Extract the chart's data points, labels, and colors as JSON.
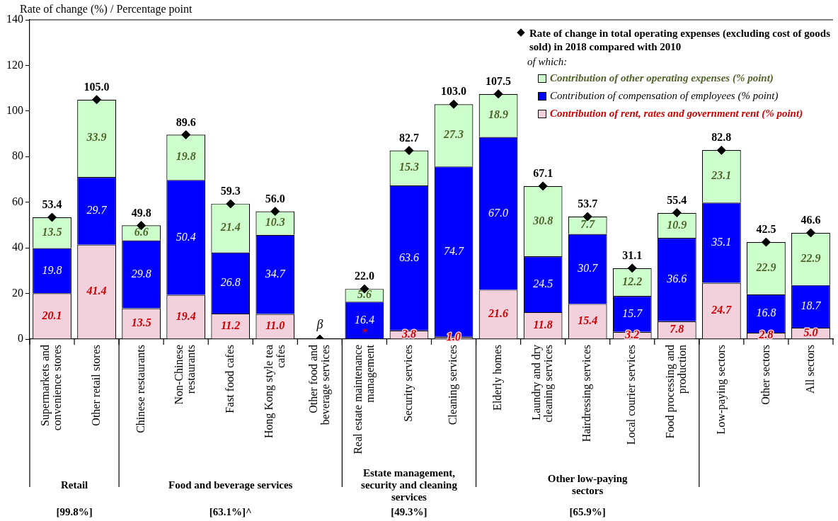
{
  "chart_data": {
    "type": "bar",
    "stacked": true,
    "ylabel": "Rate of change (%) / Percentage point",
    "legend_title": "of which:",
    "legend": "top right",
    "marker": "diamond",
    "ylim": [
      0,
      140
    ],
    "yticks": [
      0,
      20,
      40,
      60,
      80,
      100,
      120,
      140
    ],
    "categories": [
      "Supermarkets and convenience stores",
      "Other retail stores",
      "Chinese restaurants",
      "Non-Chinese restaurants",
      "Fast food cafes",
      "Hong Kong style tea cafes",
      "Other food and beverage services",
      "Real estate maintenance management",
      "Security services",
      "Cleaning services",
      "Elderly homes",
      "Laundry and dry cleaning services",
      "Hairdressing services",
      "Local courier services",
      "Food processing and production",
      "Low-paying sectors",
      "Other sectors",
      "All sectors"
    ],
    "series": [
      {
        "name": "Contribution of rent, rates and government rent (% point)",
        "color": "#f2d0dc",
        "values": [
          20.1,
          41.4,
          13.5,
          19.4,
          11.2,
          11.0,
          null,
          null,
          3.8,
          1.0,
          21.6,
          11.8,
          15.4,
          3.2,
          7.8,
          24.7,
          2.8,
          5.0
        ],
        "value_labels": [
          "20.1",
          "41.4",
          "13.5",
          "19.4",
          "11.2",
          "11.0",
          null,
          null,
          "3.8",
          "1.0",
          "21.6",
          "11.8",
          "15.4",
          "3.2",
          "7.8",
          "24.7",
          "2.8",
          "5.0"
        ]
      },
      {
        "name": "Contribution of compensation of employees (% point)",
        "color": "#0000ff",
        "values": [
          19.8,
          29.7,
          29.8,
          50.4,
          26.8,
          34.7,
          null,
          16.4,
          63.6,
          74.7,
          67.0,
          24.5,
          30.7,
          15.7,
          36.6,
          35.1,
          16.8,
          18.7
        ],
        "value_labels": [
          "19.8",
          "29.7",
          "29.8",
          "50.4",
          "26.8",
          "34.7",
          null,
          "16.4",
          "63.6",
          "74.7",
          "67.0",
          "24.5",
          "30.7",
          "15.7",
          "36.6",
          "35.1",
          "16.8",
          "18.7"
        ]
      },
      {
        "name": "Contribution of other operating expenses (% point)",
        "color": "#ccffcc",
        "values": [
          13.5,
          33.9,
          6.6,
          19.8,
          21.4,
          10.3,
          null,
          5.6,
          15.3,
          27.3,
          18.9,
          30.8,
          7.7,
          12.2,
          10.9,
          23.1,
          22.9,
          22.9
        ],
        "value_labels": [
          "13.5",
          "33.9",
          "6.6",
          "19.8",
          "21.4",
          "10.3",
          null,
          "5.6",
          "15.3",
          "27.3",
          "18.9",
          "30.8",
          "7.7",
          "12.2",
          "10.9",
          "23.1",
          "22.9",
          "22.9"
        ]
      },
      {
        "type": "scatter",
        "name": "Rate of change in total operating expenses (excluding cost of goods sold) in 2018 compared with 2010",
        "color": "#000000",
        "values": [
          53.4,
          105.0,
          49.8,
          89.6,
          59.3,
          56.0,
          0,
          22.0,
          82.7,
          103.0,
          107.5,
          67.1,
          53.7,
          31.1,
          55.4,
          82.8,
          42.5,
          46.6
        ],
        "value_labels": [
          "53.4",
          "105.0",
          "49.8",
          "89.6",
          "59.3",
          "56.0",
          "β",
          "22.0",
          "82.7",
          "103.0",
          "107.5",
          "67.1",
          "53.7",
          "31.1",
          "55.4",
          "82.8",
          "42.5",
          "46.6"
        ]
      }
    ],
    "annotations": [
      "Retail",
      "Food and beverage services",
      "Estate management, security and cleaning services",
      "Other low-paying sectors",
      "[99.8%]",
      "[63.1%]^",
      "[49.3%]",
      "[65.9%]",
      {
        "text": "*",
        "x": "Real estate maintenance management",
        "y": 0
      }
    ]
  }
}
